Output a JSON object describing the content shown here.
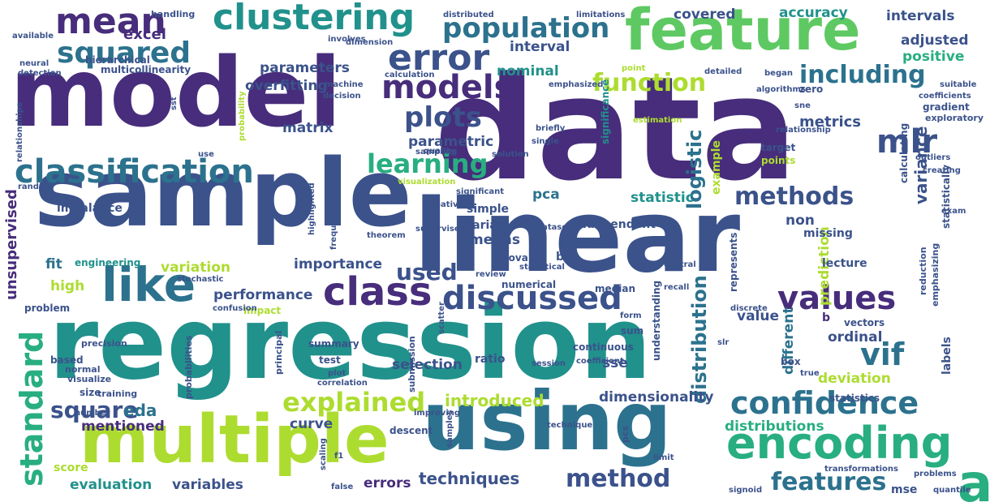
{
  "colors": {
    "c1": "#440154",
    "c2": "#472d7b",
    "c3": "#3b528b",
    "c4": "#2c728e",
    "c5": "#21918c",
    "c6": "#28ae80",
    "c7": "#5ec962",
    "c8": "#addc30",
    "c9": "#fde725"
  },
  "words": [
    {
      "text": "data"
    },
    {
      "text": "model"
    },
    {
      "text": "sample"
    },
    {
      "text": "regression"
    },
    {
      "text": "linear"
    },
    {
      "text": "using"
    },
    {
      "text": "feature"
    },
    {
      "text": "multiple"
    },
    {
      "text": "analysis"
    },
    {
      "text": "encoding"
    },
    {
      "text": "classification"
    },
    {
      "text": "clustering"
    },
    {
      "text": "like"
    },
    {
      "text": "mean"
    },
    {
      "text": "error"
    },
    {
      "text": "population"
    },
    {
      "text": "models"
    },
    {
      "text": "squared"
    },
    {
      "text": "discussed"
    },
    {
      "text": "class"
    },
    {
      "text": "values"
    },
    {
      "text": "confidence"
    },
    {
      "text": "standard"
    },
    {
      "text": "explained"
    },
    {
      "text": "method"
    },
    {
      "text": "features"
    },
    {
      "text": "function"
    },
    {
      "text": "learning"
    },
    {
      "text": "plots"
    },
    {
      "text": "including"
    },
    {
      "text": "methods"
    },
    {
      "text": "vif"
    },
    {
      "text": "mlr"
    },
    {
      "text": "square"
    },
    {
      "text": "used"
    },
    {
      "text": "distribution"
    },
    {
      "text": "logistic"
    },
    {
      "text": "variance"
    },
    {
      "text": "unsupervised"
    },
    {
      "text": "overfitting"
    },
    {
      "text": "parameters"
    },
    {
      "text": "accuracy"
    },
    {
      "text": "intervals"
    },
    {
      "text": "adjusted"
    },
    {
      "text": "positive"
    },
    {
      "text": "metrics"
    },
    {
      "text": "matrix"
    },
    {
      "text": "parametric"
    },
    {
      "text": "interval"
    },
    {
      "text": "nominal"
    },
    {
      "text": "covered"
    },
    {
      "text": "excel"
    },
    {
      "text": "hierarchical"
    },
    {
      "text": "multicollinearity"
    },
    {
      "text": "statistic"
    },
    {
      "text": "pca"
    },
    {
      "text": "means"
    },
    {
      "text": "importance"
    },
    {
      "text": "variation"
    },
    {
      "text": "performance"
    },
    {
      "text": "high"
    },
    {
      "text": "fit"
    },
    {
      "text": "eda"
    },
    {
      "text": "mentioned"
    },
    {
      "text": "introduced"
    },
    {
      "text": "selection"
    },
    {
      "text": "sse"
    },
    {
      "text": "dimensionality"
    },
    {
      "text": "curve"
    },
    {
      "text": "evaluation"
    },
    {
      "text": "variables"
    },
    {
      "text": "errors"
    },
    {
      "text": "techniques"
    },
    {
      "text": "deviation"
    },
    {
      "text": "ordinal"
    },
    {
      "text": "distributions"
    },
    {
      "text": "mse"
    },
    {
      "text": "prediction"
    },
    {
      "text": "different"
    },
    {
      "text": "labels"
    },
    {
      "text": "non"
    },
    {
      "text": "value"
    },
    {
      "text": "missing"
    },
    {
      "text": "lecture"
    },
    {
      "text": "imbalance"
    },
    {
      "text": "simple"
    },
    {
      "text": "variable"
    },
    {
      "text": "independent"
    },
    {
      "text": "anova"
    },
    {
      "text": "median"
    },
    {
      "text": "summary"
    },
    {
      "text": "test"
    },
    {
      "text": "ratio"
    },
    {
      "text": "sum"
    },
    {
      "text": "box"
    },
    {
      "text": "score"
    },
    {
      "text": "based"
    },
    {
      "text": "problem"
    },
    {
      "text": "engineering"
    },
    {
      "text": "impact"
    },
    {
      "text": "numerical"
    },
    {
      "text": "b\u0002"
    },
    {
      "text": "b\u0002"
    },
    {
      "text": "gradient"
    },
    {
      "text": "exploratory"
    },
    {
      "text": "target"
    },
    {
      "text": "points"
    },
    {
      "text": "example"
    },
    {
      "text": "zero"
    },
    {
      "text": "significance"
    },
    {
      "text": "calculating"
    },
    {
      "text": "statistically"
    },
    {
      "text": "understanding"
    },
    {
      "text": "represents"
    },
    {
      "text": "continuous"
    },
    {
      "text": "statistics"
    },
    {
      "text": "size"
    },
    {
      "text": "training"
    },
    {
      "text": "precision"
    },
    {
      "text": "normal"
    },
    {
      "text": "visualize"
    },
    {
      "text": "probabilities"
    },
    {
      "text": "principal"
    },
    {
      "text": "submission"
    },
    {
      "text": "descent"
    },
    {
      "text": "pcs"
    },
    {
      "text": "vectors"
    },
    {
      "text": "reduction"
    },
    {
      "text": "emphasizing"
    },
    {
      "text": "handling"
    },
    {
      "text": "neural"
    },
    {
      "text": "detection"
    },
    {
      "text": "available"
    },
    {
      "text": "involves"
    },
    {
      "text": "dimension"
    },
    {
      "text": "distributed"
    },
    {
      "text": "limitations"
    },
    {
      "text": "calculation"
    },
    {
      "text": "detailed"
    },
    {
      "text": "began"
    },
    {
      "text": "machine"
    },
    {
      "text": "decision"
    },
    {
      "text": "emphasized"
    },
    {
      "text": "point"
    },
    {
      "text": "algorithms"
    },
    {
      "text": "coefficients"
    },
    {
      "text": "suitable"
    },
    {
      "text": "relationships"
    },
    {
      "text": "sst"
    },
    {
      "text": "random"
    },
    {
      "text": "use"
    },
    {
      "text": "probability"
    },
    {
      "text": "sampling"
    },
    {
      "text": "briefly"
    },
    {
      "text": "single"
    },
    {
      "text": "quality"
    },
    {
      "text": "solution"
    },
    {
      "text": "estimation"
    },
    {
      "text": "sne"
    },
    {
      "text": "relationship"
    },
    {
      "text": "outliers"
    },
    {
      "text": "creating"
    },
    {
      "text": "highlighted"
    },
    {
      "text": "visualization"
    },
    {
      "text": "significant"
    },
    {
      "text": "frequency"
    },
    {
      "text": "negative"
    },
    {
      "text": "theorem"
    },
    {
      "text": "supervised"
    },
    {
      "text": "datasets"
    },
    {
      "text": "highlighting"
    },
    {
      "text": "statistical"
    },
    {
      "text": "central"
    },
    {
      "text": "exam"
    },
    {
      "text": "stochastic"
    },
    {
      "text": "review"
    },
    {
      "text": "recall"
    },
    {
      "text": "discrete"
    },
    {
      "text": "confusion"
    },
    {
      "text": "form"
    },
    {
      "text": "scatter"
    },
    {
      "text": "plot"
    },
    {
      "text": "coefficient"
    },
    {
      "text": "correlation"
    },
    {
      "text": "session"
    },
    {
      "text": "slr"
    },
    {
      "text": "true"
    },
    {
      "text": "number"
    },
    {
      "text": "improving"
    },
    {
      "text": "technique"
    },
    {
      "text": "samples"
    },
    {
      "text": "scaling"
    },
    {
      "text": "f1"
    },
    {
      "text": "false"
    },
    {
      "text": "limit"
    },
    {
      "text": "signoid"
    },
    {
      "text": "transformations"
    },
    {
      "text": "problems"
    },
    {
      "text": "quantile"
    }
  ]
}
